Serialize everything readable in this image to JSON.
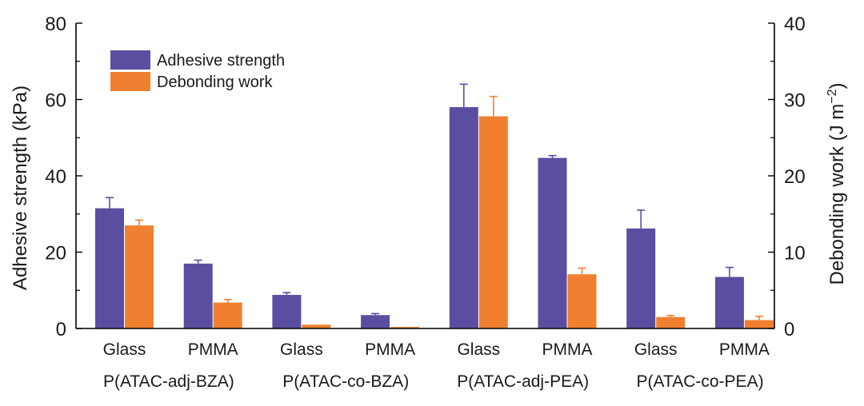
{
  "chart_data": {
    "type": "bar",
    "title": "",
    "ylabel_left": "Adhesive strength (kPa)",
    "ylabel_right_main": "Debonding work (J m",
    "ylabel_right_sup": "−2",
    "ylabel_right_close": ")",
    "ylim_left": [
      0,
      80
    ],
    "ylim_right": [
      0,
      40
    ],
    "yticks_left": [
      "0",
      "20",
      "40",
      "60",
      "80"
    ],
    "yticks_right": [
      "0",
      "10",
      "20",
      "30",
      "40"
    ],
    "categories": [
      "Glass",
      "PMMA",
      "Glass",
      "PMMA",
      "Glass",
      "PMMA",
      "Glass",
      "PMMA"
    ],
    "groups": [
      "P(ATAC-adj-BZA)",
      "P(ATAC-co-BZA)",
      "P(ATAC-adj-PEA)",
      "P(ATAC-co-PEA)"
    ],
    "legend_position": "top-left",
    "series": [
      {
        "name": "Adhesive strength",
        "axis": "left",
        "color": "#5b4ea0",
        "values": [
          31.5,
          17.0,
          8.8,
          3.5,
          58.0,
          44.7,
          26.2,
          13.5
        ],
        "errors": [
          2.8,
          0.9,
          0.6,
          0.4,
          6.0,
          0.6,
          4.8,
          2.5
        ]
      },
      {
        "name": "Debonding work",
        "axis": "right",
        "color": "#f08030",
        "values": [
          13.5,
          3.4,
          0.5,
          0.2,
          27.8,
          7.1,
          1.5,
          1.1
        ],
        "errors": [
          0.7,
          0.4,
          0.0,
          0.0,
          2.6,
          0.8,
          0.2,
          0.5
        ]
      }
    ]
  }
}
